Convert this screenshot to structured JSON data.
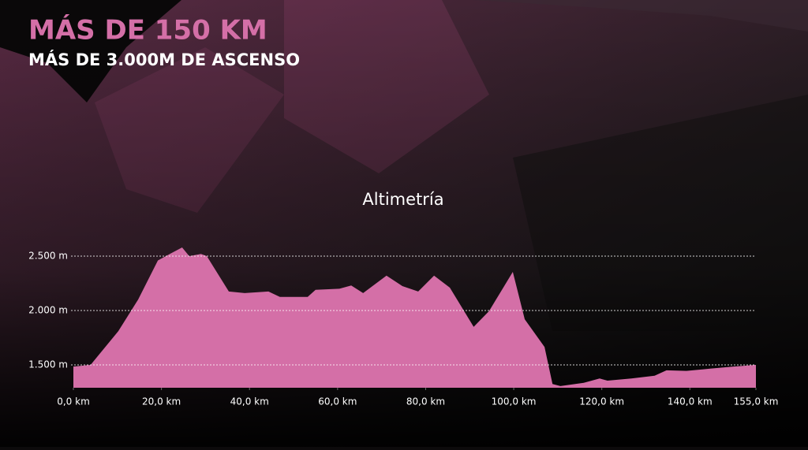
{
  "chart_data": {
    "type": "area",
    "title": "MÁS DE 150 KM",
    "subtitle": "MÁS DE 3.000M DE ASCENSO",
    "chart_title": "Altimetría",
    "color": "#d46fa7",
    "x": [
      0,
      3.9,
      10.2,
      14.7,
      19.2,
      21.9,
      24.7,
      26.3,
      29.0,
      30.3,
      35.3,
      38.9,
      44.3,
      46.9,
      53.2,
      55.0,
      60.4,
      63.1,
      65.8,
      71.1,
      74.7,
      78.3,
      81.9,
      85.5,
      90.9,
      94.4,
      99.8,
      102.5,
      107.0,
      108.8,
      110.6,
      115.9,
      119.5,
      121.3,
      126.7,
      132.0,
      134.7,
      139.2,
      144.6,
      149.9,
      155
    ],
    "values": [
      1485,
      1500,
      1810,
      2100,
      2460,
      2520,
      2580,
      2500,
      2520,
      2500,
      2175,
      2160,
      2175,
      2125,
      2125,
      2190,
      2200,
      2230,
      2160,
      2320,
      2225,
      2175,
      2320,
      2210,
      1850,
      1995,
      2355,
      1920,
      1665,
      1325,
      1305,
      1335,
      1375,
      1355,
      1375,
      1400,
      1450,
      1445,
      1465,
      1485,
      1500
    ],
    "xlim": [
      0,
      155
    ],
    "xticks": [
      {
        "value": 0,
        "label": "0,0 km"
      },
      {
        "value": 20,
        "label": "20,0 km"
      },
      {
        "value": 40,
        "label": "40,0 km"
      },
      {
        "value": 60,
        "label": "60,0 km"
      },
      {
        "value": 80,
        "label": "80,0 km"
      },
      {
        "value": 100,
        "label": "100,0 km"
      },
      {
        "value": 120,
        "label": "120,0 km"
      },
      {
        "value": 140,
        "label": "140,0 km"
      },
      {
        "value": 155,
        "label": "155,0 km"
      }
    ],
    "ylim": [
      1290,
      2700
    ],
    "yticks": [
      {
        "value": 1500,
        "label": "1.500 m"
      },
      {
        "value": 2000,
        "label": "2.000 m"
      },
      {
        "value": 2500,
        "label": "2.500 m"
      }
    ],
    "grid": true
  }
}
